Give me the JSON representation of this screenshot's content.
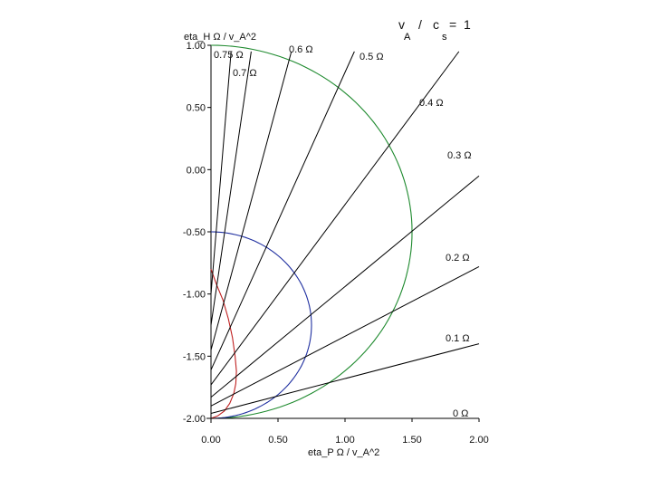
{
  "chart_data": {
    "type": "line",
    "title": "",
    "xlabel": "eta_P Ω / v_A^2",
    "ylabel": "eta_H Ω / v_A^2",
    "xlim": [
      0,
      2
    ],
    "ylim": [
      -2,
      1
    ],
    "x_ticks": [
      {
        "value": 0,
        "label": "0.00"
      },
      {
        "value": 0.5,
        "label": "0.50"
      },
      {
        "value": 1,
        "label": "1.00"
      },
      {
        "value": 1.5,
        "label": "1.50"
      },
      {
        "value": 2,
        "label": "2.00"
      }
    ],
    "y_ticks": [
      {
        "value": 1,
        "label": "1.00"
      },
      {
        "value": 0.5,
        "label": "0.50"
      },
      {
        "value": 0,
        "label": "0.00"
      },
      {
        "value": -0.5,
        "label": "-0.50"
      },
      {
        "value": -1,
        "label": "-1.00"
      },
      {
        "value": -1.5,
        "label": "-1.50"
      },
      {
        "value": -2,
        "label": "-2.00"
      }
    ],
    "parameter": {
      "v": "v",
      "v_sub": "A",
      "slash": "/",
      "c": "c",
      "c_sub": "s",
      "eq": "=",
      "value": "1"
    },
    "growth_lines": [
      {
        "label": "0 Ω",
        "x": [
          0,
          2
        ],
        "y": [
          -2.0,
          -2.0
        ]
      },
      {
        "label": "0.1 Ω",
        "x": [
          0,
          2
        ],
        "y": [
          -1.96,
          -1.4
        ]
      },
      {
        "label": "0.2 Ω",
        "x": [
          0,
          2
        ],
        "y": [
          -1.9,
          -0.78
        ]
      },
      {
        "label": "0.3 Ω",
        "x": [
          0,
          2
        ],
        "y": [
          -1.83,
          -0.05
        ]
      },
      {
        "label": "0.4 Ω",
        "x": [
          0,
          1.85
        ],
        "y": [
          -1.73,
          0.95
        ]
      },
      {
        "label": "0.5 Ω",
        "x": [
          0,
          1.07
        ],
        "y": [
          -1.61,
          0.95
        ]
      },
      {
        "label": "0.6 Ω",
        "x": [
          0,
          0.6
        ],
        "y": [
          -1.45,
          0.95
        ]
      },
      {
        "label": "0.7 Ω",
        "x": [
          0,
          0.3
        ],
        "y": [
          -1.25,
          0.95
        ]
      },
      {
        "label": "0.75 Ω",
        "x": [
          0,
          0.15
        ],
        "y": [
          -1.0,
          0.95
        ]
      }
    ],
    "curves": [
      {
        "color": "#1e8a2e",
        "shape": "half-circle",
        "center_y": -0.5,
        "radius": 1.5
      },
      {
        "color": "#1f2fa0",
        "shape": "half-circle",
        "center_y": -1.25,
        "radius": 0.75
      },
      {
        "color": "#c02020",
        "shape": "curve",
        "x": [
          0.0,
          0.04,
          0.09,
          0.13,
          0.16,
          0.18,
          0.19,
          0.185,
          0.17,
          0.14,
          0.1,
          0.05,
          0.0
        ],
        "y": [
          -0.8,
          -0.92,
          -1.05,
          -1.2,
          -1.35,
          -1.5,
          -1.62,
          -1.72,
          -1.8,
          -1.88,
          -1.94,
          -1.98,
          -2.0
        ]
      }
    ],
    "grid": false,
    "legend": "none"
  }
}
